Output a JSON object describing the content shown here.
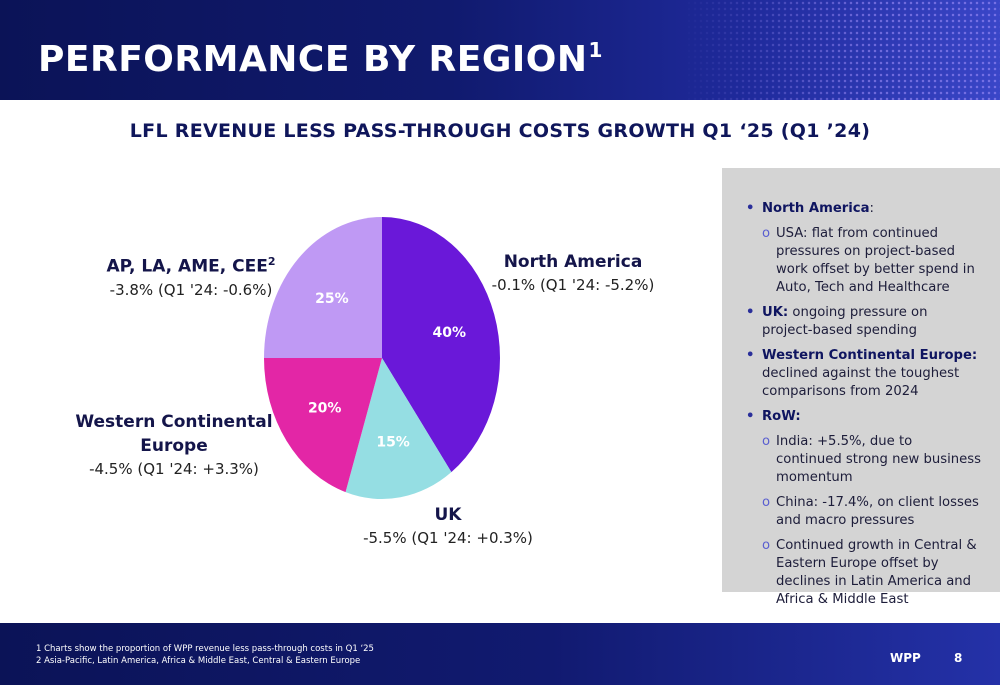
{
  "header": {
    "title": "PERFORMANCE BY REGION",
    "title_sup": "1"
  },
  "chart_data": {
    "type": "pie",
    "title": "LFL REVENUE LESS PASS-THROUGH COSTS GROWTH Q1 ‘25 (Q1 ’24)",
    "slices": [
      {
        "label": "North America",
        "value": 40,
        "value_label": "40%",
        "color": "#6a18d9",
        "detail": "-0.1% (Q1 '24: -5.2%)"
      },
      {
        "label": "UK",
        "value": 15,
        "value_label": "15%",
        "color": "#95dee3",
        "detail": "-5.5% (Q1 '24: +0.3%)"
      },
      {
        "label": "Western Continental Europe",
        "value": 20,
        "value_label": "20%",
        "color": "#e326a6",
        "detail": "-4.5% (Q1 '24: +3.3%)"
      },
      {
        "label": "AP, LA, AME, CEE",
        "label_sup": "2",
        "value": 25,
        "value_label": "25%",
        "color": "#bf99f4",
        "detail": "-3.8% (Q1 '24: -0.6%)"
      }
    ],
    "start_angle_deg": 0,
    "direction": "clockwise"
  },
  "regions": {
    "apla": {
      "name": "AP, LA, AME, CEE",
      "sup": "2",
      "value": "-3.8% (Q1 '24: -0.6%)"
    },
    "na": {
      "name": "North America",
      "value": "-0.1% (Q1 '24: -5.2%)"
    },
    "wce": {
      "name_line1": "Western Continental",
      "name_line2": "Europe",
      "value": "-4.5% (Q1 '24: +3.3%)"
    },
    "uk": {
      "name": "UK",
      "value": "-5.5% (Q1 '24: +0.3%)"
    }
  },
  "panel": {
    "b1_bold": "North America",
    "b1_rest": ":",
    "b1_sub1": "USA: flat from continued pressures on project-based work offset by better spend in Auto, Tech and Healthcare",
    "b2_bold": "UK:",
    "b2_rest": " ongoing pressure on project-based spending",
    "b3_bold": "Western Continental Europe:",
    "b3_rest": " declined against the toughest comparisons from 2024",
    "b4_bold": "RoW:",
    "b4_rest": "",
    "b4_sub1": "India: +5.5%, due to continued strong new business momentum",
    "b4_sub2": "China: -17.4%, on client losses and macro pressures",
    "b4_sub3": "Continued growth in Central & Eastern Europe offset by declines in Latin America and Africa & Middle East",
    "bullet": "•",
    "sub_bullet": "o"
  },
  "footer": {
    "note1": "1  Charts show the proportion of WPP revenue less pass-through costs in Q1 ‘25",
    "note2": "2  Asia-Pacific, Latin America, Africa & Middle East, Central & Eastern Europe",
    "brand": "WPP",
    "page": "8"
  }
}
